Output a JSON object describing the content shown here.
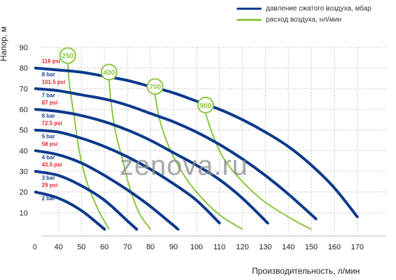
{
  "legend": {
    "pressure_label": "давление сжатого воздуха, мбар",
    "flow_label": "расход воздуха, нл/мин",
    "pressure_color": "#0b3a8c",
    "flow_color": "#8cc63f"
  },
  "watermark": "zenova.ru",
  "chart_data": {
    "type": "line",
    "xlabel": "Производительность, л/мин",
    "ylabel": "Напор, м",
    "xlim": [
      0,
      170
    ],
    "ylim": [
      0,
      90
    ],
    "x_tick_labels": [
      "0",
      "40",
      "50",
      "60",
      "70",
      "80",
      "90",
      "100",
      "110",
      "120",
      "130",
      "140",
      "150",
      "160",
      "170"
    ],
    "y_ticks": [
      10,
      20,
      30,
      40,
      50,
      60,
      70,
      80,
      90
    ],
    "grid": true,
    "legend_position": "top-right",
    "series": [
      {
        "name": "2 bar",
        "psi": "29 psi",
        "x": [
          30,
          40,
          50,
          60
        ],
        "y": [
          20,
          17,
          11,
          2
        ]
      },
      {
        "name": "3 bar",
        "psi": "43.5 psi",
        "x": [
          30,
          40,
          50,
          60,
          70,
          74
        ],
        "y": [
          30,
          28,
          23,
          16,
          6,
          2
        ]
      },
      {
        "name": "4 bar",
        "psi": "58 psi",
        "x": [
          30,
          40,
          50,
          60,
          70,
          80,
          92
        ],
        "y": [
          40,
          38,
          34,
          28,
          21,
          13,
          2
        ]
      },
      {
        "name": "5 bar",
        "psi": "72.5 psi",
        "x": [
          30,
          40,
          50,
          60,
          70,
          80,
          90,
          100,
          110
        ],
        "y": [
          50,
          49,
          46,
          42,
          37,
          31,
          24,
          16,
          5
        ]
      },
      {
        "name": "6 bar",
        "psi": "87 psi",
        "x": [
          30,
          40,
          50,
          60,
          70,
          80,
          90,
          100,
          110,
          120,
          131
        ],
        "y": [
          60,
          59,
          57,
          54,
          50,
          45,
          39,
          33,
          26,
          17,
          5
        ]
      },
      {
        "name": "7 bar",
        "psi": "101.5 psi",
        "x": [
          30,
          40,
          50,
          60,
          70,
          80,
          90,
          100,
          110,
          120,
          130,
          140,
          152
        ],
        "y": [
          70,
          69,
          67,
          65,
          62,
          58,
          54,
          49,
          43,
          36,
          28,
          19,
          7
        ]
      },
      {
        "name": "8 bar",
        "psi": "116 psi",
        "x": [
          30,
          40,
          50,
          60,
          70,
          80,
          90,
          100,
          110,
          120,
          130,
          140,
          150,
          160,
          170
        ],
        "y": [
          80,
          79,
          78,
          76,
          74,
          71,
          68,
          64,
          60,
          55,
          49,
          42,
          33,
          22,
          8
        ]
      }
    ],
    "air_flow_series": [
      {
        "label": "250",
        "x": [
          44,
          45,
          47,
          49,
          52,
          57,
          62
        ],
        "y": [
          82,
          70,
          55,
          40,
          26,
          12,
          2
        ]
      },
      {
        "label": "400",
        "x": [
          62,
          63,
          65,
          68,
          71,
          75,
          80
        ],
        "y": [
          74,
          62,
          48,
          35,
          22,
          10,
          2
        ]
      },
      {
        "label": "700",
        "x": [
          82,
          84,
          88,
          93,
          100,
          110,
          120
        ],
        "y": [
          67,
          55,
          42,
          31,
          20,
          9,
          2
        ]
      },
      {
        "label": "900",
        "x": [
          104,
          107,
          112,
          120,
          130,
          143,
          150
        ],
        "y": [
          58,
          48,
          36,
          25,
          15,
          6,
          2
        ]
      }
    ]
  }
}
